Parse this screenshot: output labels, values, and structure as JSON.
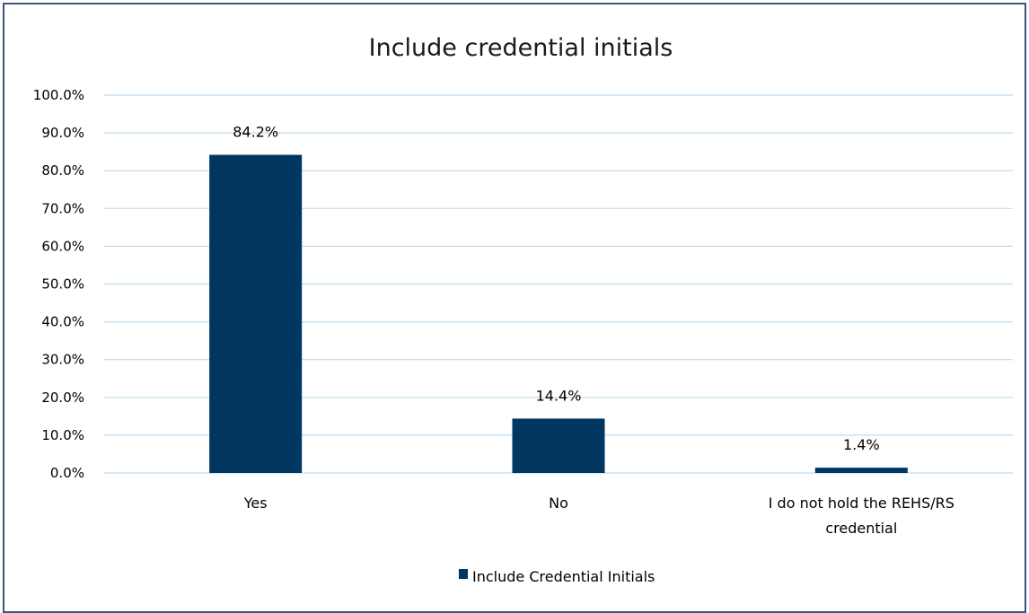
{
  "chart_data": {
    "type": "bar",
    "title": "Include credential initials",
    "categories": [
      [
        "Yes"
      ],
      [
        "No"
      ],
      [
        "I do not hold the REHS/RS",
        "credential"
      ]
    ],
    "series": [
      {
        "name": "Include Credential Initials",
        "values": [
          84.2,
          14.4,
          1.4
        ],
        "data_labels": [
          "84.2%",
          "14.4%",
          "1.4%"
        ],
        "color": "#003660"
      }
    ],
    "ylim": [
      0,
      100
    ],
    "y_ticks": [
      "0.0%",
      "10.0%",
      "20.0%",
      "30.0%",
      "40.0%",
      "50.0%",
      "60.0%",
      "70.0%",
      "80.0%",
      "90.0%",
      "100.0%"
    ],
    "grid": true,
    "gridline_color": "#bfdcf0",
    "legend_position": "bottom"
  }
}
